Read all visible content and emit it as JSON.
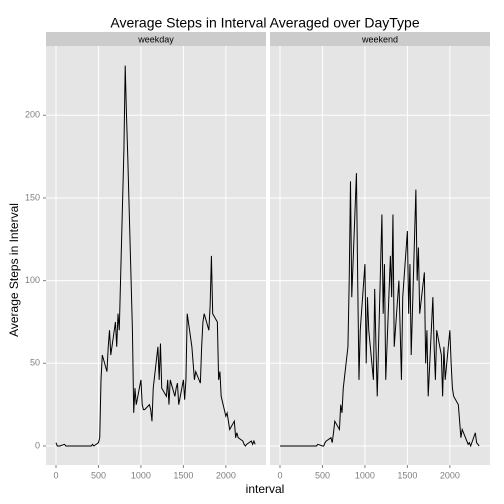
{
  "chart_data": {
    "type": "line",
    "title": "Average Steps in Interval Averaged over DayType",
    "xlabel": "interval",
    "ylabel": "Average Steps in Interval",
    "color": "#000000",
    "grid": true,
    "xlim": [
      -117.75,
      2472.75
    ],
    "ylim": [
      -11.5,
      241.9
    ],
    "xticks": [
      0,
      500,
      1000,
      1500,
      2000
    ],
    "yticks": [
      0,
      50,
      100,
      150,
      200
    ],
    "x": [
      0,
      15,
      30,
      45,
      100,
      115,
      130,
      145,
      200,
      215,
      230,
      245,
      300,
      315,
      330,
      345,
      400,
      415,
      430,
      445,
      500,
      515,
      530,
      545,
      600,
      615,
      630,
      645,
      700,
      715,
      730,
      745,
      800,
      815,
      830,
      845,
      900,
      915,
      930,
      945,
      1000,
      1015,
      1030,
      1045,
      1100,
      1115,
      1130,
      1145,
      1200,
      1215,
      1230,
      1245,
      1300,
      1315,
      1330,
      1345,
      1400,
      1415,
      1430,
      1445,
      1500,
      1515,
      1530,
      1545,
      1600,
      1615,
      1630,
      1645,
      1700,
      1715,
      1730,
      1745,
      1800,
      1815,
      1830,
      1845,
      1900,
      1915,
      1930,
      1945,
      2000,
      2015,
      2030,
      2045,
      2100,
      2115,
      2130,
      2145,
      2200,
      2215,
      2230,
      2245,
      2300,
      2315,
      2330,
      2345
    ],
    "series": [
      {
        "name": "weekday",
        "values": [
          2,
          0,
          0,
          0,
          1,
          0,
          0,
          0,
          0,
          0,
          0,
          0,
          0,
          0,
          0,
          0,
          0,
          0,
          1,
          0,
          2,
          5,
          40,
          55,
          45,
          60,
          70,
          55,
          75,
          60,
          80,
          70,
          180,
          230,
          200,
          175,
          70,
          20,
          35,
          25,
          40,
          25,
          22,
          22,
          25,
          22,
          15,
          35,
          60,
          40,
          62,
          35,
          30,
          40,
          25,
          40,
          30,
          35,
          38,
          25,
          40,
          28,
          40,
          80,
          60,
          50,
          40,
          45,
          38,
          60,
          75,
          80,
          70,
          85,
          115,
          80,
          75,
          40,
          45,
          30,
          18,
          20,
          15,
          10,
          15,
          5,
          8,
          5,
          3,
          1,
          0,
          1,
          3,
          1,
          3,
          1
        ]
      },
      {
        "name": "weekend",
        "values": [
          0,
          0,
          0,
          0,
          0,
          0,
          0,
          0,
          0,
          0,
          0,
          0,
          0,
          0,
          0,
          0,
          0,
          0,
          0,
          1,
          0,
          0,
          2,
          3,
          5,
          2,
          8,
          15,
          10,
          25,
          20,
          35,
          60,
          100,
          160,
          90,
          165,
          100,
          40,
          70,
          110,
          50,
          90,
          70,
          40,
          95,
          60,
          30,
          140,
          80,
          110,
          40,
          115,
          90,
          140,
          60,
          100,
          70,
          40,
          90,
          130,
          80,
          110,
          55,
          155,
          100,
          120,
          80,
          105,
          50,
          70,
          30,
          90,
          60,
          40,
          70,
          55,
          30,
          60,
          40,
          70,
          50,
          35,
          30,
          25,
          15,
          5,
          10,
          3,
          1,
          2,
          0,
          8,
          2,
          1,
          0
        ]
      }
    ]
  }
}
